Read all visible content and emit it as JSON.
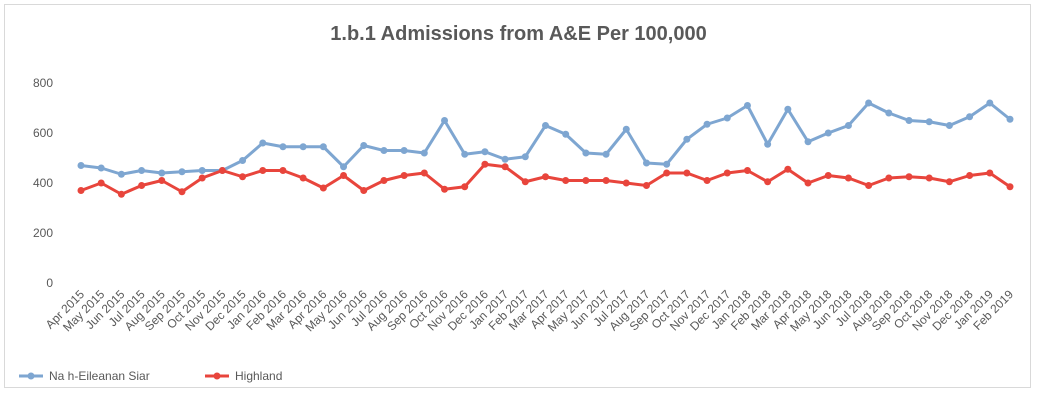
{
  "chart_data": {
    "type": "line",
    "title": "1.b.1 Admissions from A&E Per 100,000",
    "ylim": [
      0,
      800
    ],
    "yticks": [
      0,
      200,
      400,
      600,
      800
    ],
    "grid": false,
    "legend_position": "bottom-left",
    "categories": [
      "Apr 2015",
      "May 2015",
      "Jun 2015",
      "Jul 2015",
      "Aug 2015",
      "Sep 2015",
      "Oct 2015",
      "Nov 2015",
      "Dec 2015",
      "Jan 2016",
      "Feb 2016",
      "Mar 2016",
      "Apr 2016",
      "May 2016",
      "Jun 2016",
      "Jul 2016",
      "Aug 2016",
      "Sep 2016",
      "Oct 2016",
      "Nov 2016",
      "Dec 2016",
      "Jan 2017",
      "Feb 2017",
      "Mar 2017",
      "Apr 2017",
      "May 2017",
      "Jun 2017",
      "Jul 2017",
      "Aug 2017",
      "Sep 2017",
      "Oct 2017",
      "Nov 2017",
      "Dec 2017",
      "Jan 2018",
      "Feb 2018",
      "Mar 2018",
      "Apr 2018",
      "May 2018",
      "Jun 2018",
      "Jul 2018",
      "Aug 2018",
      "Sep 2018",
      "Oct 2018",
      "Nov 2018",
      "Dec 2018",
      "Jan 2019",
      "Feb 2019"
    ],
    "series": [
      {
        "name": "Na h-Eileanan Siar",
        "color": "#7ea6d1",
        "values": [
          470,
          460,
          435,
          450,
          440,
          445,
          450,
          450,
          490,
          560,
          545,
          545,
          545,
          465,
          550,
          530,
          530,
          520,
          650,
          515,
          525,
          495,
          505,
          630,
          595,
          520,
          515,
          615,
          480,
          475,
          575,
          635,
          660,
          710,
          555,
          695,
          565,
          600,
          630,
          720,
          680,
          650,
          645,
          630,
          665,
          720,
          655
        ]
      },
      {
        "name": "Highland",
        "color": "#e8453c",
        "values": [
          370,
          400,
          355,
          390,
          410,
          365,
          420,
          450,
          425,
          450,
          450,
          420,
          380,
          430,
          370,
          410,
          430,
          440,
          375,
          385,
          475,
          465,
          405,
          425,
          410,
          410,
          410,
          400,
          390,
          440,
          440,
          410,
          440,
          450,
          405,
          455,
          400,
          430,
          420,
          390,
          420,
          425,
          420,
          405,
          430,
          440,
          385
        ]
      }
    ]
  }
}
